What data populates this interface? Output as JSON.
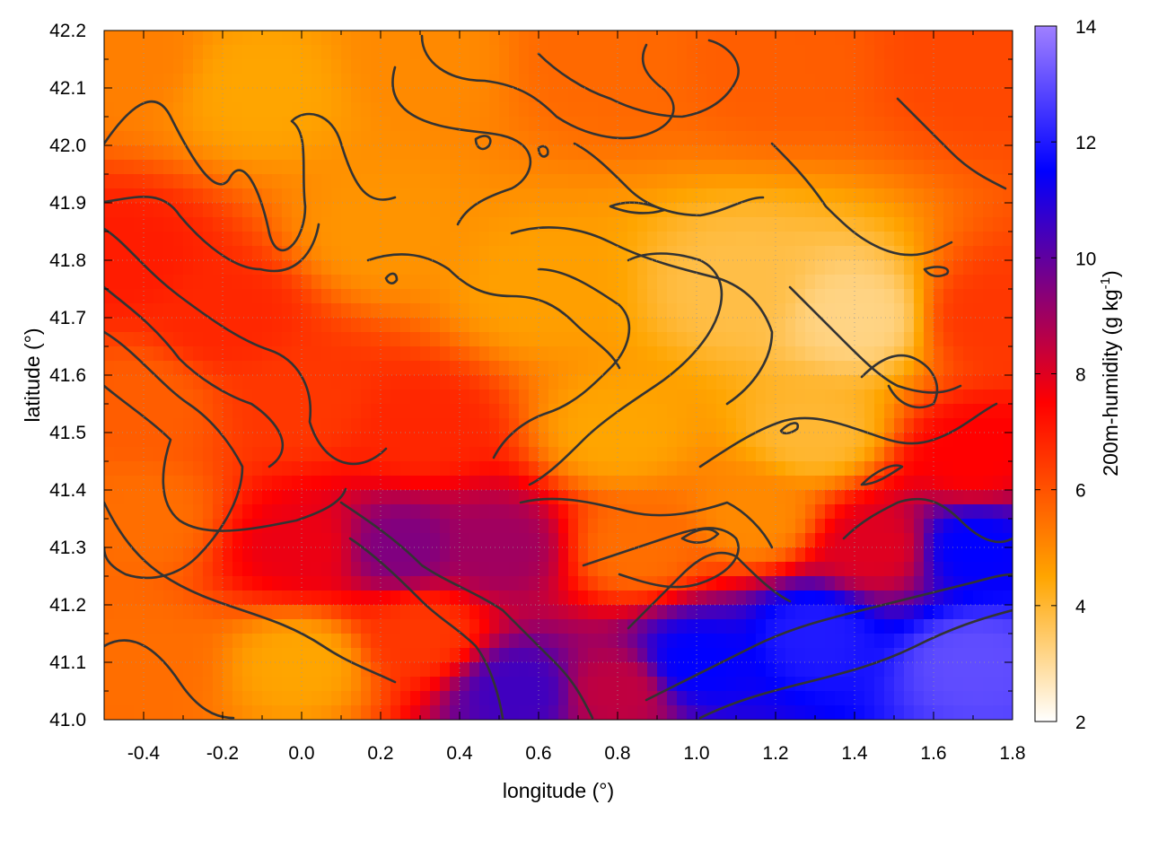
{
  "chart_data": {
    "type": "heatmap",
    "title": "",
    "xlabel": "longitude (°)",
    "ylabel": "latitude (°)",
    "xlim": [
      -0.5,
      1.8
    ],
    "ylim": [
      41.0,
      42.2
    ],
    "x_ticks": [
      "-0.4",
      "-0.2",
      "0.0",
      "0.2",
      "0.4",
      "0.6",
      "0.8",
      "1.0",
      "1.2",
      "1.4",
      "1.6",
      "1.8"
    ],
    "x_tick_values": [
      -0.4,
      -0.2,
      0.0,
      0.2,
      0.4,
      0.6,
      0.8,
      1.0,
      1.2,
      1.4,
      1.6,
      1.8
    ],
    "y_ticks": [
      "41.0",
      "41.1",
      "41.2",
      "41.3",
      "41.4",
      "41.5",
      "41.6",
      "41.7",
      "41.8",
      "41.9",
      "42.0",
      "42.1",
      "42.2"
    ],
    "y_tick_values": [
      41.0,
      41.1,
      41.2,
      41.3,
      41.4,
      41.5,
      41.6,
      41.7,
      41.8,
      41.9,
      42.0,
      42.1,
      42.2
    ],
    "grid": true,
    "colorbar": {
      "label": "200m-humidity (g kg-1)",
      "label_main": "200m-humidity (g kg",
      "label_sup": "-1",
      "label_end": ")",
      "range": [
        2,
        14
      ],
      "ticks": [
        "2",
        "4",
        "6",
        "8",
        "10",
        "12",
        "14"
      ],
      "tick_values": [
        2,
        4,
        6,
        8,
        10,
        12,
        14
      ],
      "colors": [
        "#ffffff",
        "#ffa500",
        "#ff0000",
        "#800080",
        "#0000ff",
        "#a080ff"
      ],
      "color_stops": [
        2,
        4.5,
        7.5,
        9.5,
        11.5,
        14
      ]
    },
    "contour_color": "#333333",
    "field_samples": [
      {
        "lon": -0.45,
        "lat": 42.15,
        "value": 5.2
      },
      {
        "lon": -0.1,
        "lat": 42.1,
        "value": 4.5
      },
      {
        "lon": 0.3,
        "lat": 42.15,
        "value": 5.0
      },
      {
        "lon": 0.75,
        "lat": 42.15,
        "value": 5.6
      },
      {
        "lon": 1.2,
        "lat": 42.15,
        "value": 5.8
      },
      {
        "lon": 1.7,
        "lat": 42.15,
        "value": 6.2
      },
      {
        "lon": -0.45,
        "lat": 41.8,
        "value": 7.0
      },
      {
        "lon": -0.2,
        "lat": 41.7,
        "value": 6.8
      },
      {
        "lon": 0.2,
        "lat": 41.85,
        "value": 4.8
      },
      {
        "lon": 0.6,
        "lat": 41.75,
        "value": 4.6
      },
      {
        "lon": 1.1,
        "lat": 41.75,
        "value": 3.8
      },
      {
        "lon": 1.4,
        "lat": 41.7,
        "value": 3.2
      },
      {
        "lon": 1.75,
        "lat": 41.7,
        "value": 6.5
      },
      {
        "lon": -0.4,
        "lat": 41.55,
        "value": 5.8
      },
      {
        "lon": 0.0,
        "lat": 41.55,
        "value": 6.5
      },
      {
        "lon": 0.3,
        "lat": 41.5,
        "value": 6.8
      },
      {
        "lon": 0.8,
        "lat": 41.5,
        "value": 4.5
      },
      {
        "lon": 1.3,
        "lat": 41.5,
        "value": 4.0
      },
      {
        "lon": 1.7,
        "lat": 41.45,
        "value": 7.5
      },
      {
        "lon": -0.4,
        "lat": 41.35,
        "value": 5.5
      },
      {
        "lon": 0.0,
        "lat": 41.3,
        "value": 7.8
      },
      {
        "lon": 0.25,
        "lat": 41.3,
        "value": 9.5
      },
      {
        "lon": 0.5,
        "lat": 41.3,
        "value": 9.0
      },
      {
        "lon": 0.85,
        "lat": 41.3,
        "value": 5.5
      },
      {
        "lon": 1.15,
        "lat": 41.35,
        "value": 5.0
      },
      {
        "lon": 1.45,
        "lat": 41.3,
        "value": 8.0
      },
      {
        "lon": 1.7,
        "lat": 41.3,
        "value": 11.5
      },
      {
        "lon": -0.4,
        "lat": 41.1,
        "value": 5.5
      },
      {
        "lon": 0.0,
        "lat": 41.1,
        "value": 4.5
      },
      {
        "lon": 0.3,
        "lat": 41.15,
        "value": 6.5
      },
      {
        "lon": 0.55,
        "lat": 41.05,
        "value": 10.5
      },
      {
        "lon": 0.8,
        "lat": 41.05,
        "value": 8.5
      },
      {
        "lon": 1.0,
        "lat": 41.1,
        "value": 11.5
      },
      {
        "lon": 1.3,
        "lat": 41.15,
        "value": 12.0
      },
      {
        "lon": 1.7,
        "lat": 41.1,
        "value": 13.0
      }
    ]
  }
}
